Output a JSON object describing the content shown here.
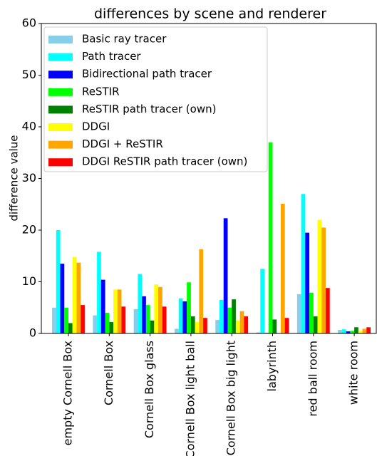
{
  "chart_data": {
    "type": "bar",
    "title": "differences by scene and renderer",
    "y_label": "difference value",
    "categories": [
      "empty Cornell Box",
      "Cornell Box",
      "Cornell Box glass",
      "Cornell Box light ball",
      "Cornell Box big light",
      "labyrinth",
      "red ball room",
      "white room"
    ],
    "series": [
      {
        "name": "Basic ray tracer",
        "color": "#87ceeb",
        "values": [
          5,
          3.5,
          4.7,
          0.9,
          2.6,
          0.2,
          7.6,
          0.7
        ]
      },
      {
        "name": "Path tracer",
        "color": "#00ffff",
        "values": [
          20,
          15.8,
          11.5,
          6.8,
          6.5,
          12.5,
          27,
          0.8
        ]
      },
      {
        "name": "Bidirectional path tracer",
        "color": "#0000ff",
        "values": [
          13.5,
          10.4,
          7.2,
          6.2,
          22.3,
          0.1,
          19.5,
          0.4
        ]
      },
      {
        "name": "ReSTIR",
        "color": "#00ff00",
        "values": [
          5,
          4,
          5.5,
          9.9,
          5,
          37,
          7.9,
          0.5
        ]
      },
      {
        "name": "ReSTIR path tracer (own)",
        "color": "#008000",
        "values": [
          2,
          2.2,
          2.5,
          3.3,
          6.6,
          2.7,
          3.3,
          1.2
        ]
      },
      {
        "name": "DDGI",
        "color": "#ffff00",
        "values": [
          14.8,
          8.5,
          9.5,
          2.2,
          2.5,
          0.1,
          22,
          0.5
        ]
      },
      {
        "name": "DDGI + ReSTIR",
        "color": "#ffa500",
        "values": [
          13.7,
          8.5,
          9,
          16.3,
          4.3,
          25.1,
          20.5,
          0.9
        ]
      },
      {
        "name": "DDGI ReSTIR path tracer (own)",
        "color": "#ff0000",
        "values": [
          5.5,
          5.2,
          5.2,
          3,
          3.3,
          3,
          8.8,
          1.2
        ]
      }
    ],
    "ylim": [
      0,
      60
    ],
    "yticks": [
      0,
      10,
      20,
      30,
      40,
      50,
      60
    ],
    "legend": "upper left"
  }
}
